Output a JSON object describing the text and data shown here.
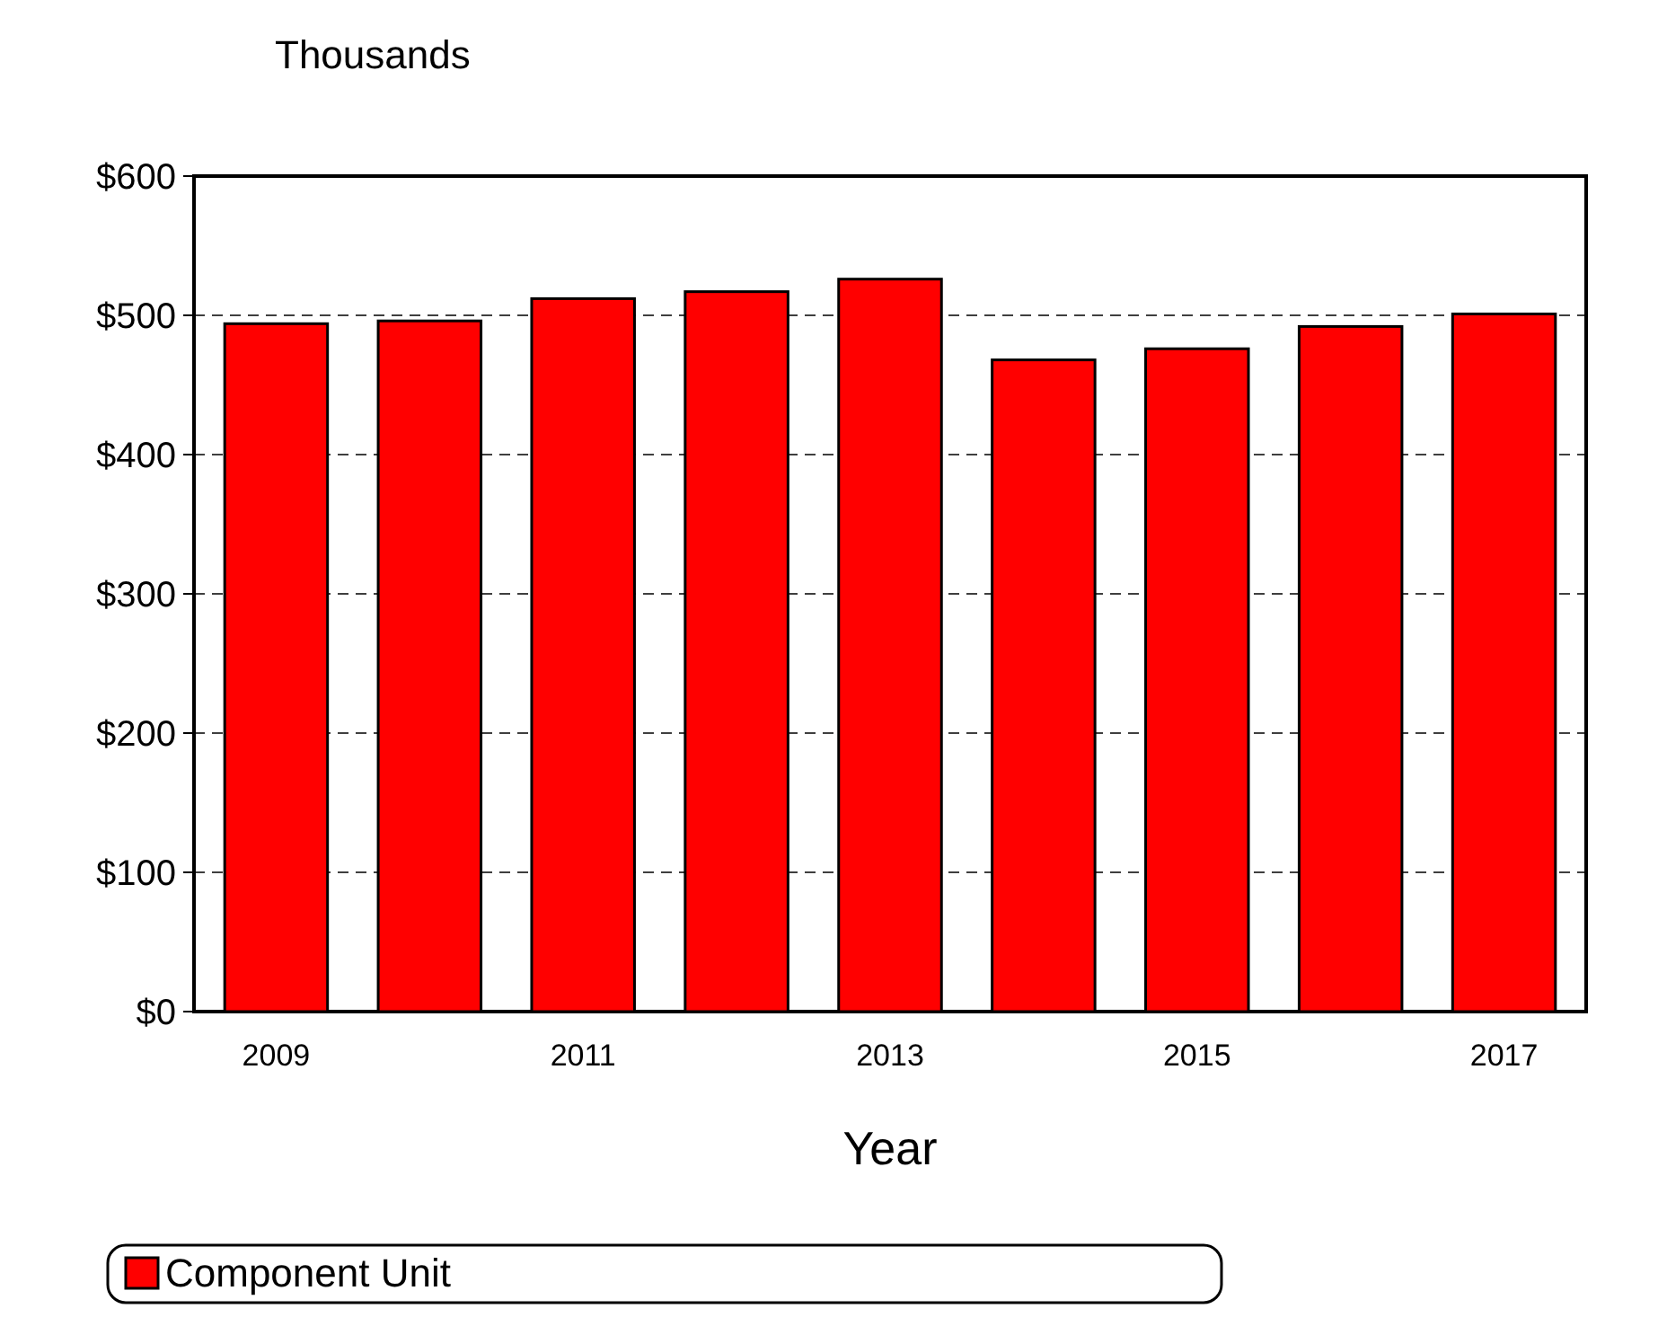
{
  "chart_data": {
    "type": "bar",
    "ylabel": "Thousands",
    "xlabel": "Year",
    "categories": [
      "2009",
      null,
      "2011",
      null,
      "2013",
      null,
      "2015",
      null,
      "2017"
    ],
    "series": [
      {
        "name": "Component Unit",
        "color": "#ff0000",
        "values": [
          494,
          496,
          512,
          517,
          526,
          468,
          476,
          492,
          501
        ]
      }
    ],
    "ylim": [
      0,
      600
    ],
    "yticks": [
      {
        "value": 0,
        "label": "$0"
      },
      {
        "value": 100,
        "label": "$100"
      },
      {
        "value": 200,
        "label": "$200"
      },
      {
        "value": 300,
        "label": "$300"
      },
      {
        "value": 400,
        "label": "$400"
      },
      {
        "value": 500,
        "label": "$500"
      },
      {
        "value": 600,
        "label": "$600"
      }
    ],
    "grid": "y",
    "legend": "bottom"
  }
}
